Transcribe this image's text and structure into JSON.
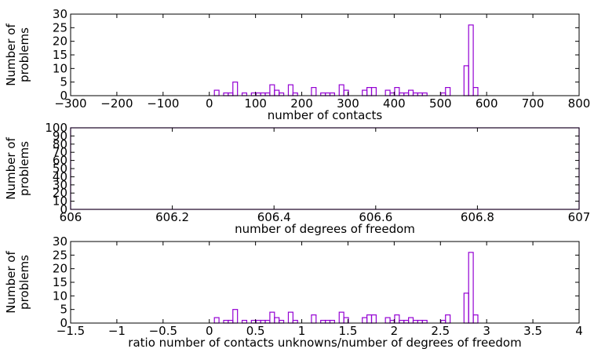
{
  "chart_data": [
    {
      "type": "bar",
      "xlabel": "number of contacts",
      "ylabel_lines": [
        "Number of",
        "problems"
      ],
      "xlim": [
        -300,
        800
      ],
      "ylim": [
        0,
        30
      ],
      "xticks": [
        -300,
        -200,
        -100,
        0,
        100,
        200,
        300,
        400,
        500,
        600,
        700,
        800
      ],
      "xtick_labels": [
        "−300",
        "−200",
        "−100",
        "0",
        "100",
        "200",
        "300",
        "400",
        "500",
        "600",
        "700",
        "800"
      ],
      "yticks": [
        0,
        5,
        10,
        15,
        20,
        25,
        30
      ],
      "ytick_labels": [
        "0",
        "5",
        "10",
        "15",
        "20",
        "25",
        "30"
      ],
      "bin_width": 10,
      "bars": [
        {
          "x": 16,
          "y": 2
        },
        {
          "x": 36,
          "y": 1
        },
        {
          "x": 46,
          "y": 1
        },
        {
          "x": 56,
          "y": 5
        },
        {
          "x": 76,
          "y": 1
        },
        {
          "x": 96,
          "y": 1
        },
        {
          "x": 106,
          "y": 1
        },
        {
          "x": 116,
          "y": 1
        },
        {
          "x": 126,
          "y": 1
        },
        {
          "x": 136,
          "y": 4
        },
        {
          "x": 146,
          "y": 2
        },
        {
          "x": 156,
          "y": 1
        },
        {
          "x": 176,
          "y": 4
        },
        {
          "x": 186,
          "y": 1
        },
        {
          "x": 226,
          "y": 3
        },
        {
          "x": 246,
          "y": 1
        },
        {
          "x": 256,
          "y": 1
        },
        {
          "x": 266,
          "y": 1
        },
        {
          "x": 286,
          "y": 4
        },
        {
          "x": 296,
          "y": 2
        },
        {
          "x": 336,
          "y": 2
        },
        {
          "x": 346,
          "y": 3
        },
        {
          "x": 356,
          "y": 3
        },
        {
          "x": 386,
          "y": 2
        },
        {
          "x": 396,
          "y": 1
        },
        {
          "x": 406,
          "y": 3
        },
        {
          "x": 416,
          "y": 1
        },
        {
          "x": 426,
          "y": 1
        },
        {
          "x": 436,
          "y": 2
        },
        {
          "x": 446,
          "y": 1
        },
        {
          "x": 456,
          "y": 1
        },
        {
          "x": 466,
          "y": 1
        },
        {
          "x": 506,
          "y": 1
        },
        {
          "x": 516,
          "y": 3
        },
        {
          "x": 556,
          "y": 11
        },
        {
          "x": 566,
          "y": 26
        },
        {
          "x": 576,
          "y": 3
        }
      ]
    },
    {
      "type": "bar",
      "xlabel": "number of degrees of freedom",
      "ylabel_lines": [
        "Number of",
        "problems"
      ],
      "xlim": [
        606,
        607
      ],
      "ylim": [
        0,
        100
      ],
      "xticks": [
        606,
        606.2,
        606.4,
        606.6,
        606.8,
        607
      ],
      "xtick_labels": [
        "606",
        "606.2",
        "606.4",
        "606.6",
        "606.8",
        "607"
      ],
      "yticks": [
        0,
        10,
        20,
        30,
        40,
        50,
        60,
        70,
        80,
        90,
        100
      ],
      "ytick_labels": [
        "0",
        "10",
        "20",
        "30",
        "40",
        "50",
        "60",
        "70",
        "80",
        "90",
        "100"
      ],
      "bin_width": 1,
      "bars": [
        {
          "x": 606.5,
          "y": 100
        }
      ]
    },
    {
      "type": "bar",
      "xlabel": "ratio number of contacts unknowns/number of degrees of freedom",
      "ylabel_lines": [
        "Number of",
        "problems"
      ],
      "xlim": [
        -1.5,
        4
      ],
      "ylim": [
        0,
        30
      ],
      "xticks": [
        -1.5,
        -1,
        -0.5,
        0,
        0.5,
        1,
        1.5,
        2,
        2.5,
        3,
        3.5,
        4
      ],
      "xtick_labels": [
        "−1.5",
        "−1",
        "−0.5",
        "0",
        "0.5",
        "1",
        "1.5",
        "2",
        "2.5",
        "3",
        "3.5",
        "4"
      ],
      "yticks": [
        0,
        5,
        10,
        15,
        20,
        25,
        30
      ],
      "ytick_labels": [
        "0",
        "5",
        "10",
        "15",
        "20",
        "25",
        "30"
      ],
      "bin_width": 0.05,
      "bars": [
        {
          "x": 0.08,
          "y": 2
        },
        {
          "x": 0.18,
          "y": 1
        },
        {
          "x": 0.23,
          "y": 1
        },
        {
          "x": 0.28,
          "y": 5
        },
        {
          "x": 0.38,
          "y": 1
        },
        {
          "x": 0.48,
          "y": 1
        },
        {
          "x": 0.53,
          "y": 1
        },
        {
          "x": 0.58,
          "y": 1
        },
        {
          "x": 0.63,
          "y": 1
        },
        {
          "x": 0.68,
          "y": 4
        },
        {
          "x": 0.73,
          "y": 2
        },
        {
          "x": 0.78,
          "y": 1
        },
        {
          "x": 0.88,
          "y": 4
        },
        {
          "x": 0.93,
          "y": 1
        },
        {
          "x": 1.13,
          "y": 3
        },
        {
          "x": 1.23,
          "y": 1
        },
        {
          "x": 1.28,
          "y": 1
        },
        {
          "x": 1.33,
          "y": 1
        },
        {
          "x": 1.43,
          "y": 4
        },
        {
          "x": 1.48,
          "y": 2
        },
        {
          "x": 1.68,
          "y": 2
        },
        {
          "x": 1.73,
          "y": 3
        },
        {
          "x": 1.78,
          "y": 3
        },
        {
          "x": 1.93,
          "y": 2
        },
        {
          "x": 1.98,
          "y": 1
        },
        {
          "x": 2.03,
          "y": 3
        },
        {
          "x": 2.08,
          "y": 1
        },
        {
          "x": 2.13,
          "y": 1
        },
        {
          "x": 2.18,
          "y": 2
        },
        {
          "x": 2.23,
          "y": 1
        },
        {
          "x": 2.28,
          "y": 1
        },
        {
          "x": 2.33,
          "y": 1
        },
        {
          "x": 2.53,
          "y": 1
        },
        {
          "x": 2.58,
          "y": 3
        },
        {
          "x": 2.78,
          "y": 11
        },
        {
          "x": 2.83,
          "y": 26
        },
        {
          "x": 2.88,
          "y": 3
        }
      ]
    }
  ],
  "colors": {
    "bar_stroke": "#9400d3",
    "frame": "#000000"
  }
}
